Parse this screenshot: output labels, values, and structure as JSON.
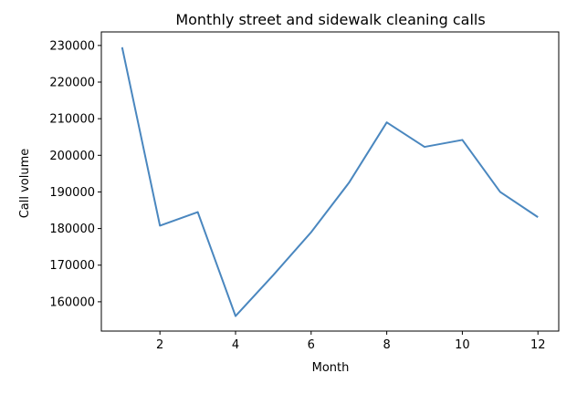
{
  "chart_data": {
    "type": "line",
    "title": "Monthly street and sidewalk cleaning calls",
    "xlabel": "Month",
    "ylabel": "Call volume",
    "xlim": [
      0.45,
      12.55
    ],
    "ylim": [
      152000,
      233700
    ],
    "grid": false,
    "x_ticks": [
      2,
      4,
      6,
      8,
      10,
      12
    ],
    "y_ticks": [
      160000,
      170000,
      180000,
      190000,
      200000,
      210000,
      220000,
      230000
    ],
    "series": [
      {
        "color": "#4a87bf",
        "x": [
          1,
          2,
          3,
          4,
          5,
          6,
          7,
          8,
          9,
          10,
          11,
          12
        ],
        "y": [
          229500,
          180800,
          184500,
          156100,
          167300,
          179000,
          192500,
          209000,
          202300,
          204200,
          190000,
          183100
        ]
      }
    ]
  }
}
